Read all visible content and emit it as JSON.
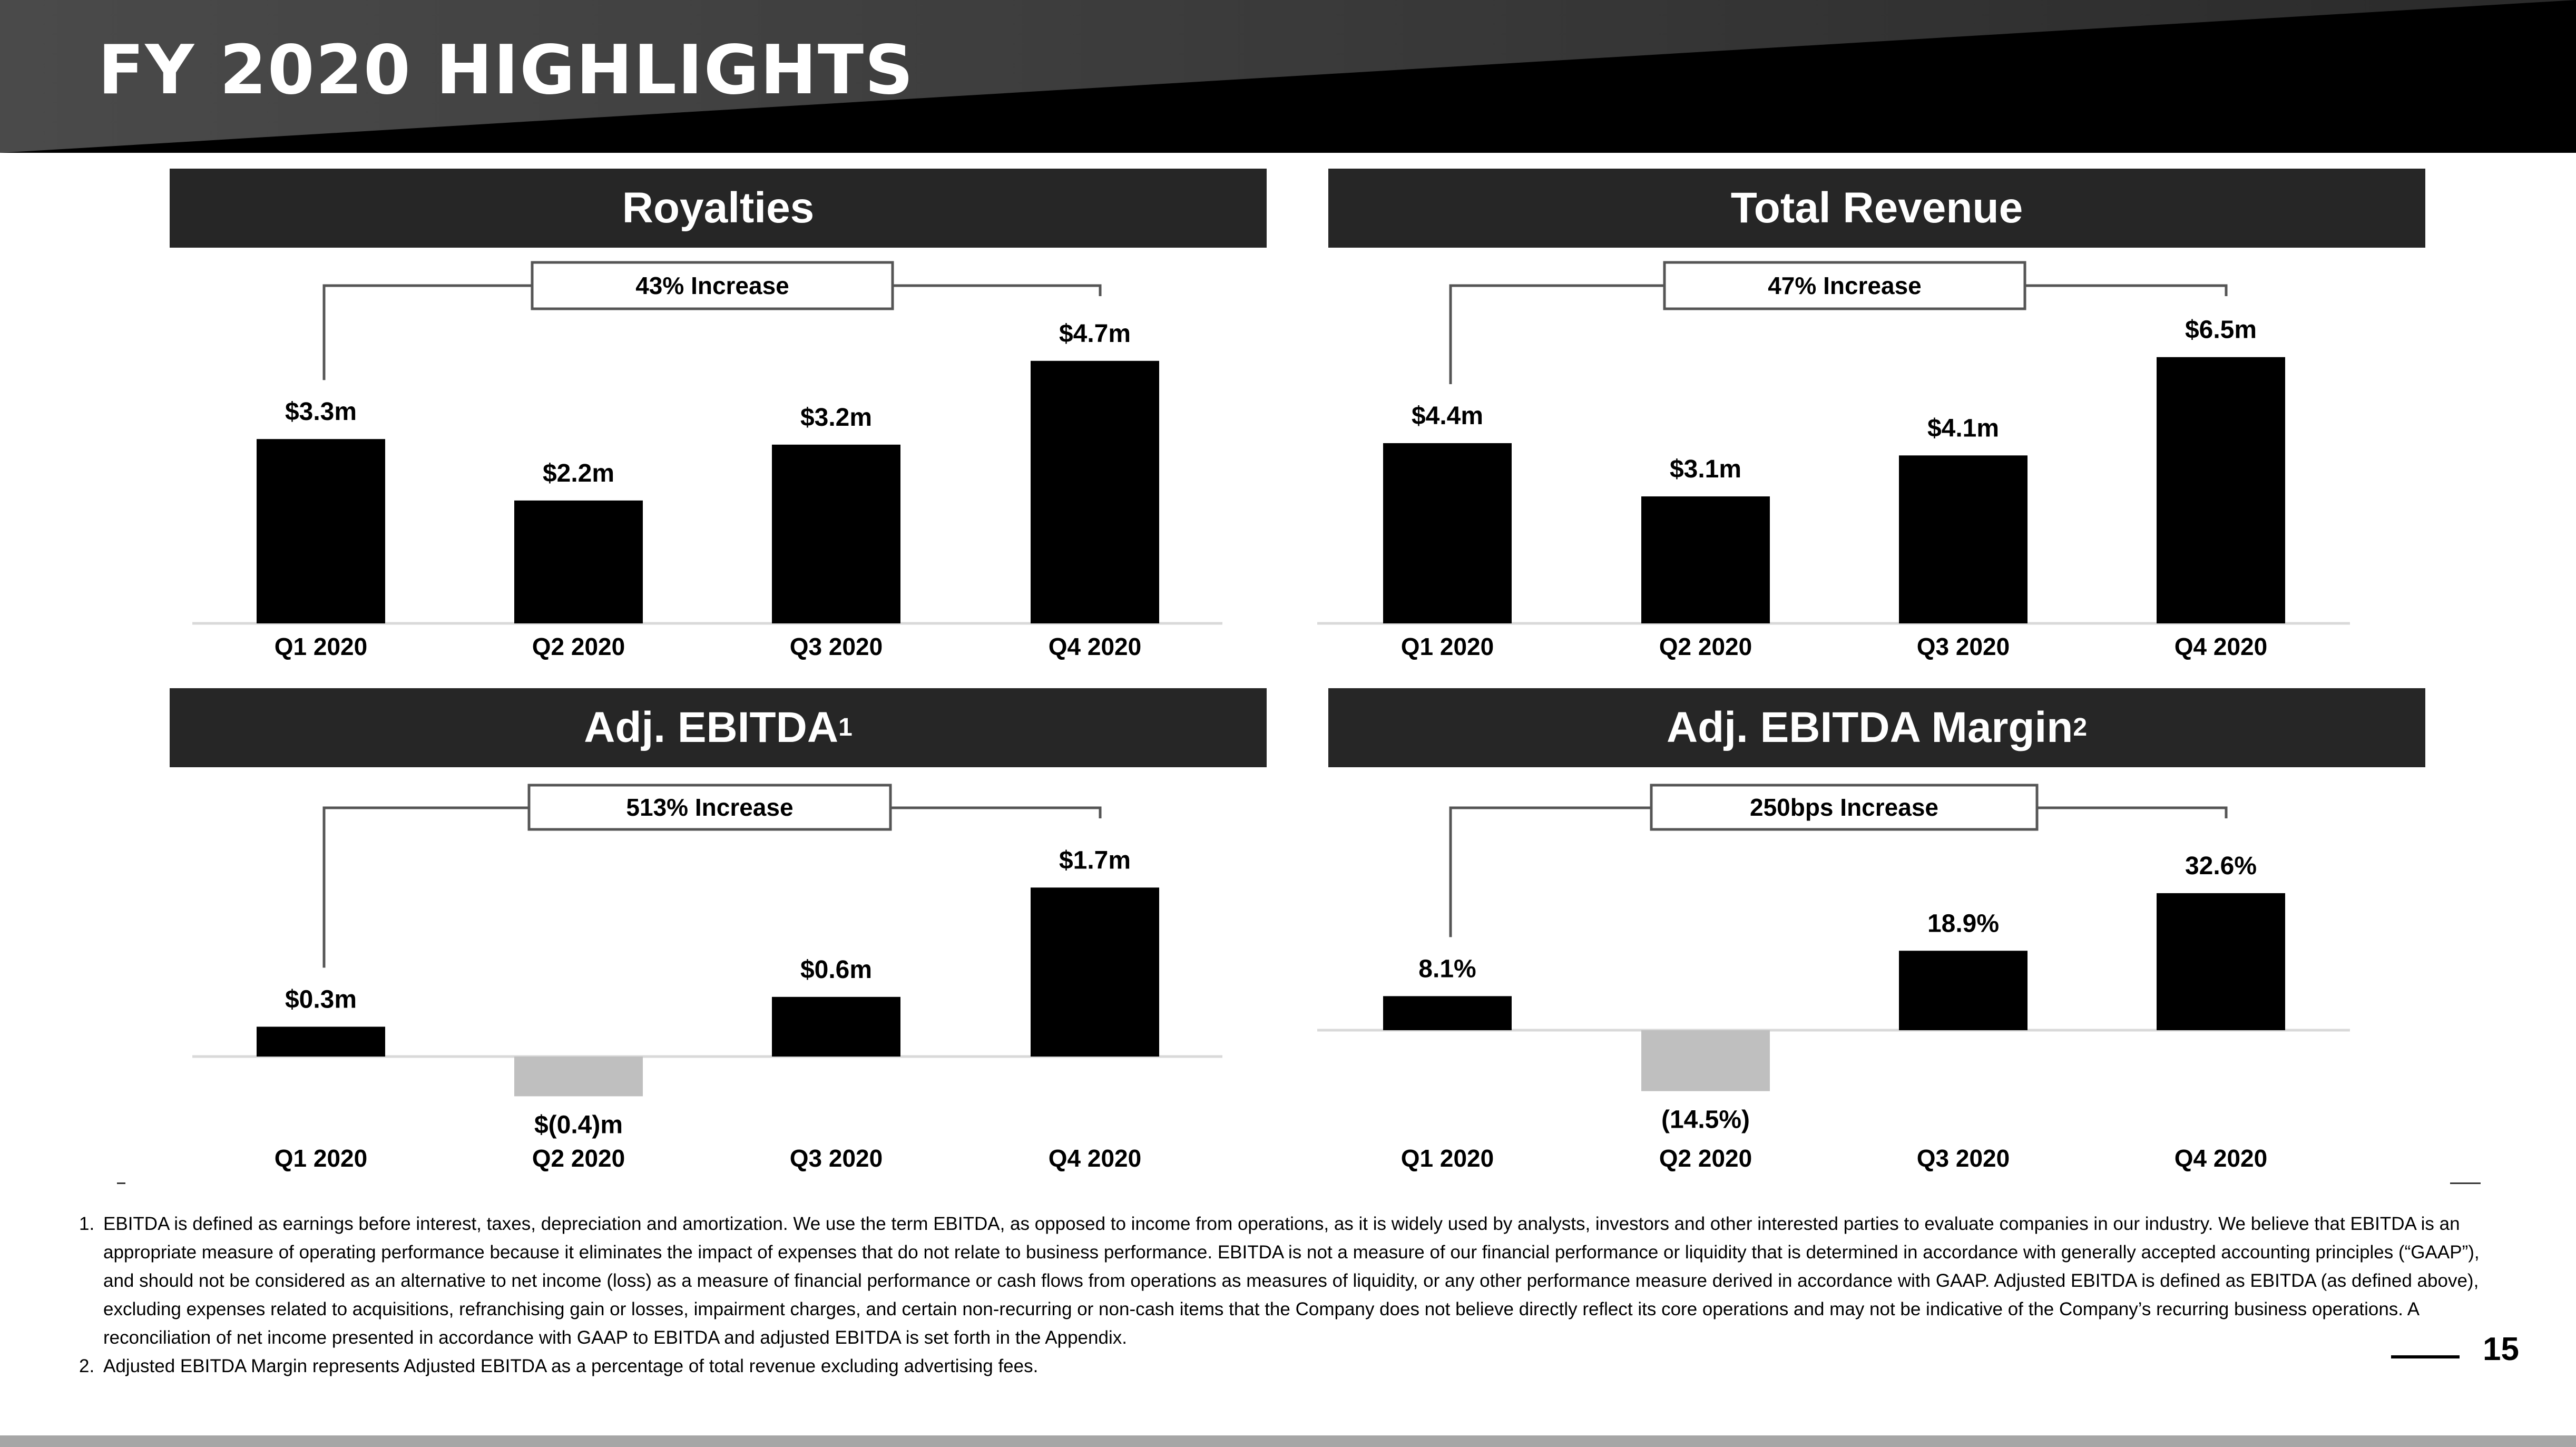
{
  "header": {
    "title": "FY 2020 HIGHLIGHTS"
  },
  "panels": [
    {
      "title": "Royalties",
      "sup": ""
    },
    {
      "title": "Total Revenue",
      "sup": ""
    },
    {
      "title": "Adj. EBITDA",
      "sup": "1"
    },
    {
      "title": "Adj. EBITDA Margin",
      "sup": "2"
    }
  ],
  "chart_data": [
    {
      "type": "bar",
      "title": "Royalties",
      "categories": [
        "Q1 2020",
        "Q2 2020",
        "Q3 2020",
        "Q4 2020"
      ],
      "values": [
        3.3,
        2.2,
        3.2,
        4.7
      ],
      "labels": [
        "$3.3m",
        "$2.2m",
        "$3.2m",
        "$4.7m"
      ],
      "annotation": "43% Increase",
      "ylim": [
        0,
        5.5
      ],
      "grid": false,
      "colors": {
        "positive": "#000000",
        "negative": "#bfbfbf"
      }
    },
    {
      "type": "bar",
      "title": "Total Revenue",
      "categories": [
        "Q1 2020",
        "Q2 2020",
        "Q3 2020",
        "Q4 2020"
      ],
      "values": [
        4.4,
        3.1,
        4.1,
        6.5
      ],
      "labels": [
        "$4.4m",
        "$3.1m",
        "$4.1m",
        "$6.5m"
      ],
      "annotation": "47% Increase",
      "ylim": [
        0,
        7.5
      ],
      "grid": false,
      "colors": {
        "positive": "#000000",
        "negative": "#bfbfbf"
      }
    },
    {
      "type": "bar",
      "title": "Adj. EBITDA",
      "categories": [
        "Q1 2020",
        "Q2 2020",
        "Q3 2020",
        "Q4 2020"
      ],
      "values": [
        0.3,
        -0.4,
        0.6,
        1.7
      ],
      "labels": [
        "$0.3m",
        "$(0.4)m",
        "$0.6m",
        "$1.7m"
      ],
      "annotation": "513% Increase",
      "ylim": [
        -0.5,
        2.2
      ],
      "grid": false,
      "colors": {
        "positive": "#000000",
        "negative": "#bfbfbf"
      }
    },
    {
      "type": "bar",
      "title": "Adj. EBITDA Margin",
      "categories": [
        "Q1 2020",
        "Q2 2020",
        "Q3 2020",
        "Q4 2020"
      ],
      "values": [
        8.1,
        -14.5,
        18.9,
        32.6
      ],
      "labels": [
        "8.1%",
        "(14.5%)",
        "18.9%",
        "32.6%"
      ],
      "annotation": "250bps Increase",
      "ylim": [
        -18,
        42
      ],
      "grid": false,
      "colors": {
        "positive": "#000000",
        "negative": "#bfbfbf"
      }
    }
  ],
  "footnotes": [
    {
      "num": "1.",
      "text": "EBITDA is defined as earnings before interest, taxes, depreciation and amortization. We use the term EBITDA, as opposed to income from operations, as it is widely used by analysts, investors and other interested parties to evaluate companies in our industry. We believe that EBITDA is an appropriate measure of operating performance because it eliminates the impact of expenses that do not relate to business performance. EBITDA is not a measure of our financial performance or liquidity that is determined in accordance with generally accepted accounting principles (“GAAP”), and should not be considered as an alternative to net income (loss) as a measure of financial performance or cash flows from operations as measures of liquidity, or any other performance measure derived in accordance with GAAP. Adjusted EBITDA is defined as EBITDA (as defined above), excluding expenses related to acquisitions, refranchising gain or losses, impairment charges, and certain non-recurring or non-cash items that the Company does not believe directly reflect its core operations and may not be indicative of the Company’s recurring business operations. A reconciliation of net income presented in accordance with GAAP to EBITDA and adjusted EBITDA is set forth in the Appendix."
    },
    {
      "num": "2.",
      "text": "Adjusted EBITDA Margin represents Adjusted EBITDA as a percentage of total revenue excluding advertising fees."
    }
  ],
  "page_number": "15",
  "colors": {
    "header_dark": "#000000",
    "header_light": "#4d4d4d",
    "panel_title_bg": "#262626",
    "bottom_bar": "#a6a6a6"
  }
}
